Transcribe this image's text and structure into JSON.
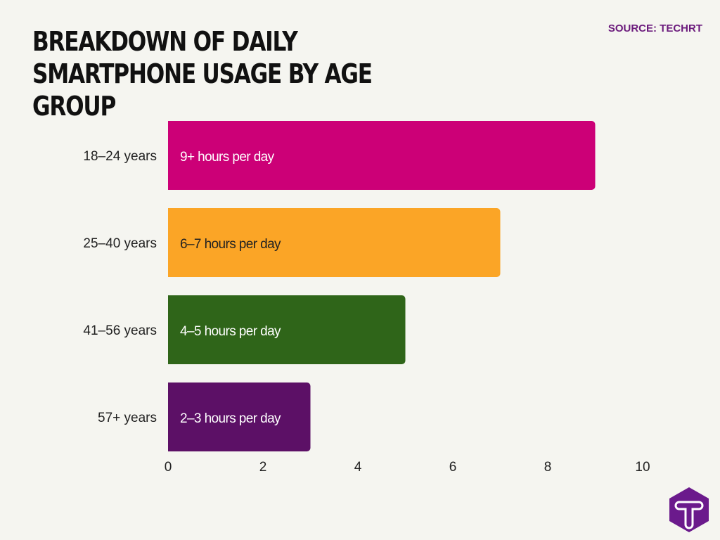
{
  "title": "Breakdown of Daily Smartphone Usage by Age Group",
  "source": "SOURCE: TECHRT",
  "chart_data": {
    "type": "bar",
    "orientation": "horizontal",
    "categories": [
      "18–24 years",
      "25–40 years",
      "41–56 years",
      "57+ years"
    ],
    "values": [
      9,
      7,
      5,
      3
    ],
    "data_labels": [
      "9+ hours per day",
      "6–7 hours per day",
      "4–5 hours per day",
      "2–3 hours per day"
    ],
    "colors": [
      "#cc0077",
      "#fba526",
      "#2f6519",
      "#5c1066"
    ],
    "label_colors": [
      "#ffffff",
      "#222222",
      "#ffffff",
      "#ffffff"
    ],
    "xlim": [
      0,
      10
    ],
    "xticks": [
      "0",
      "2",
      "4",
      "6",
      "8",
      "10"
    ],
    "grid": false
  },
  "logo": {
    "letter": "T",
    "color": "#6b1a8c"
  }
}
